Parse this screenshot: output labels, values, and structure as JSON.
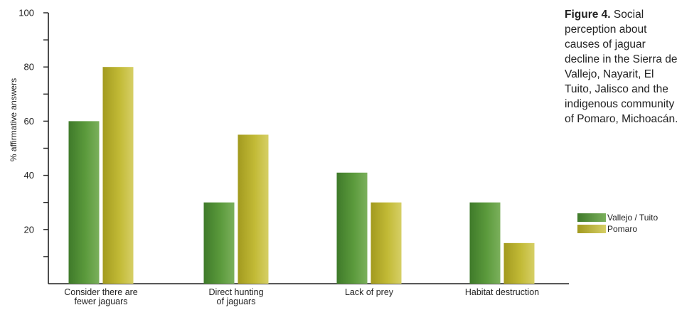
{
  "chart_data": {
    "type": "bar",
    "categories": [
      [
        "Consider there are",
        "fewer jaguars"
      ],
      [
        "Direct hunting",
        "of jaguars"
      ],
      [
        "Lack of prey"
      ],
      [
        "Habitat destruction"
      ]
    ],
    "series": [
      {
        "name": "Vallejo / Tuito",
        "values": [
          60,
          30,
          41,
          30
        ],
        "color": "#4f8a34"
      },
      {
        "name": "Pomaro",
        "values": [
          80,
          55,
          30,
          15
        ],
        "color": "#b5ad2c"
      }
    ],
    "ylabel": "% affirmative answers",
    "xlabel": "",
    "ylim": [
      0,
      100
    ],
    "yticks": [
      20,
      40,
      60,
      80,
      100
    ],
    "grid": false,
    "legend_position": "right"
  },
  "caption": {
    "label": "Figure 4.",
    "text": "Social perception about causes of jaguar decline in the Sierra de Vallejo, Nayarit, El Tuito, Jalisco and the indigenous community of Pomaro, Michoacán."
  }
}
